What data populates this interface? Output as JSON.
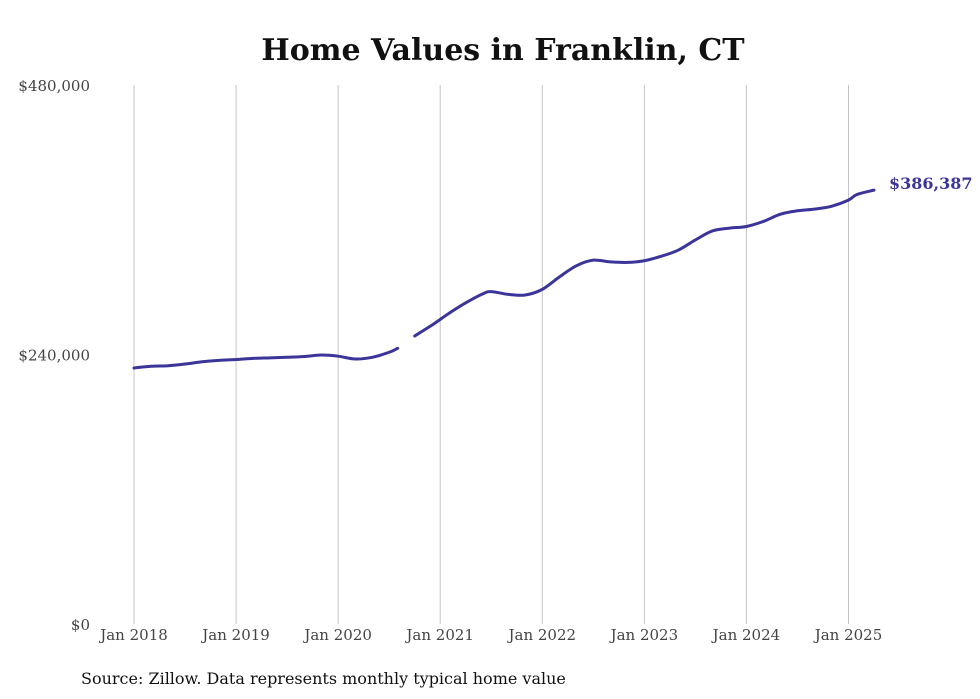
{
  "chart_data": {
    "type": "line",
    "title": "Home Values in Franklin, CT",
    "xlabel": "",
    "ylabel": "",
    "ylim": [
      0,
      480000
    ],
    "y_ticks": [
      {
        "value": 0,
        "label": "$0"
      },
      {
        "value": 240000,
        "label": "$240,000"
      },
      {
        "value": 480000,
        "label": "$480,000"
      }
    ],
    "x_ticks": [
      {
        "value": "2018-01",
        "label": "Jan 2018"
      },
      {
        "value": "2019-01",
        "label": "Jan 2019"
      },
      {
        "value": "2020-01",
        "label": "Jan 2020"
      },
      {
        "value": "2021-01",
        "label": "Jan 2021"
      },
      {
        "value": "2022-01",
        "label": "Jan 2022"
      },
      {
        "value": "2023-01",
        "label": "Jan 2023"
      },
      {
        "value": "2024-01",
        "label": "Jan 2024"
      },
      {
        "value": "2025-01",
        "label": "Jan 2025"
      }
    ],
    "x_range": [
      "2018-01",
      "2025-04"
    ],
    "grid": {
      "vertical": true,
      "horizontal": false
    },
    "end_label": "$386,387",
    "color": "#3b3599",
    "series": [
      {
        "segments": [
          [
            {
              "x": "2018-01",
              "y": 228000
            },
            {
              "x": "2018-03",
              "y": 229500
            },
            {
              "x": "2018-05",
              "y": 230000
            },
            {
              "x": "2018-07",
              "y": 231500
            },
            {
              "x": "2018-09",
              "y": 233500
            },
            {
              "x": "2018-11",
              "y": 234800
            },
            {
              "x": "2019-01",
              "y": 235500
            },
            {
              "x": "2019-03",
              "y": 236500
            },
            {
              "x": "2019-05",
              "y": 237000
            },
            {
              "x": "2019-07",
              "y": 237500
            },
            {
              "x": "2019-09",
              "y": 238200
            },
            {
              "x": "2019-11",
              "y": 239500
            },
            {
              "x": "2020-01",
              "y": 238500
            },
            {
              "x": "2020-03",
              "y": 236000
            },
            {
              "x": "2020-05",
              "y": 237500
            },
            {
              "x": "2020-07",
              "y": 242000
            },
            {
              "x": "2020-08",
              "y": 245500
            }
          ],
          [
            {
              "x": "2020-10",
              "y": 256500
            },
            {
              "x": "2020-12",
              "y": 266000
            },
            {
              "x": "2021-02",
              "y": 276500
            },
            {
              "x": "2021-04",
              "y": 286000
            },
            {
              "x": "2021-06",
              "y": 294000
            },
            {
              "x": "2021-07",
              "y": 296000
            },
            {
              "x": "2021-09",
              "y": 293500
            },
            {
              "x": "2021-11",
              "y": 293000
            },
            {
              "x": "2022-01",
              "y": 298000
            },
            {
              "x": "2022-03",
              "y": 309000
            },
            {
              "x": "2022-05",
              "y": 319000
            },
            {
              "x": "2022-07",
              "y": 324000
            },
            {
              "x": "2022-09",
              "y": 322500
            },
            {
              "x": "2022-11",
              "y": 322000
            },
            {
              "x": "2023-01",
              "y": 323500
            },
            {
              "x": "2023-03",
              "y": 327500
            },
            {
              "x": "2023-05",
              "y": 333000
            },
            {
              "x": "2023-07",
              "y": 342000
            },
            {
              "x": "2023-09",
              "y": 350000
            },
            {
              "x": "2023-11",
              "y": 352500
            },
            {
              "x": "2024-01",
              "y": 354000
            },
            {
              "x": "2024-03",
              "y": 358500
            },
            {
              "x": "2024-05",
              "y": 365000
            },
            {
              "x": "2024-07",
              "y": 368000
            },
            {
              "x": "2024-09",
              "y": 369500
            },
            {
              "x": "2024-11",
              "y": 372000
            },
            {
              "x": "2025-01",
              "y": 377500
            },
            {
              "x": "2025-02",
              "y": 382500
            },
            {
              "x": "2025-04",
              "y": 386387
            }
          ]
        ]
      }
    ]
  },
  "footer": {
    "source": "Source: Zillow. Data represents monthly typical home value"
  }
}
